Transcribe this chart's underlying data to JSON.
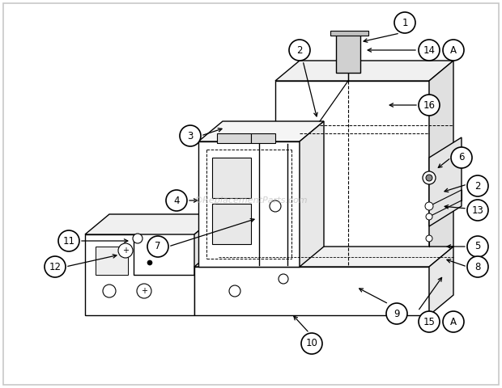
{
  "bg_color": "#ffffff",
  "border_color": "#c8c8c8",
  "watermark": "©ReplacementParts.com",
  "watermark_color": "#b0b0b0",
  "label_circle_edge": "#000000",
  "label_circle_face": "#ffffff",
  "label_text_color": "#000000"
}
